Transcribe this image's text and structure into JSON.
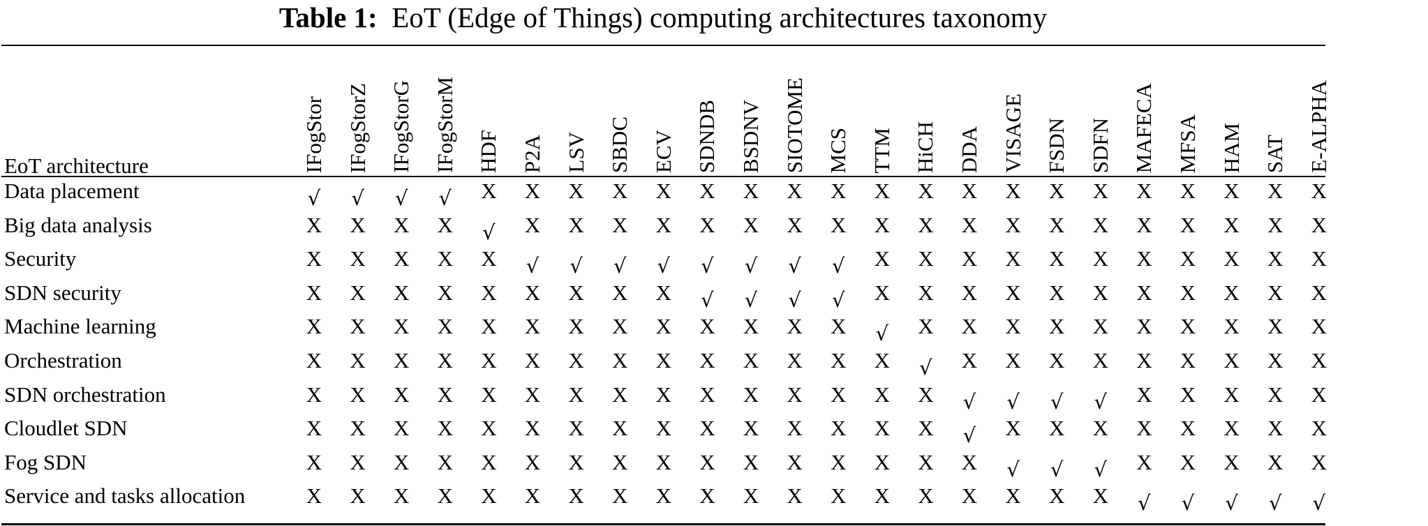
{
  "caption": {
    "label": "Table 1:",
    "text": "EoT (Edge of Things) computing architectures taxonomy"
  },
  "table": {
    "corner_label": "EoT architecture",
    "columns": [
      "IFogStor",
      "IFogStorZ",
      "IFogStorG",
      "IFogStorM",
      "HDF",
      "P2A",
      "LSV",
      "SBDC",
      "ECV",
      "SDNDB",
      "BSDNV",
      "SIOTOME",
      "MCS",
      "TTM",
      "HiCH",
      "DDA",
      "VISAGE",
      "FSDN",
      "SDFN",
      "MAFECA",
      "MFSA",
      "HAM",
      "SAT",
      "E-ALPHA"
    ],
    "symbols": {
      "yes": "√",
      "no": "X"
    },
    "rows": [
      {
        "label": "Data placement",
        "values": [
          "√",
          "√",
          "√",
          "√",
          "X",
          "X",
          "X",
          "X",
          "X",
          "X",
          "X",
          "X",
          "X",
          "X",
          "X",
          "X",
          "X",
          "X",
          "X",
          "X",
          "X",
          "X",
          "X",
          "X"
        ]
      },
      {
        "label": "Big data analysis",
        "values": [
          "X",
          "X",
          "X",
          "X",
          "√",
          "X",
          "X",
          "X",
          "X",
          "X",
          "X",
          "X",
          "X",
          "X",
          "X",
          "X",
          "X",
          "X",
          "X",
          "X",
          "X",
          "X",
          "X",
          "X"
        ]
      },
      {
        "label": "Security",
        "values": [
          "X",
          "X",
          "X",
          "X",
          "X",
          "√",
          "√",
          "√",
          "√",
          "√",
          "√",
          "√",
          "√",
          "X",
          "X",
          "X",
          "X",
          "X",
          "X",
          "X",
          "X",
          "X",
          "X",
          "X"
        ]
      },
      {
        "label": "SDN security",
        "values": [
          "X",
          "X",
          "X",
          "X",
          "X",
          "X",
          "X",
          "X",
          "X",
          "√",
          "√",
          "√",
          "√",
          "X",
          "X",
          "X",
          "X",
          "X",
          "X",
          "X",
          "X",
          "X",
          "X",
          "X"
        ]
      },
      {
        "label": "Machine learning",
        "values": [
          "X",
          "X",
          "X",
          "X",
          "X",
          "X",
          "X",
          "X",
          "X",
          "X",
          "X",
          "X",
          "X",
          "√",
          "X",
          "X",
          "X",
          "X",
          "X",
          "X",
          "X",
          "X",
          "X",
          "X"
        ]
      },
      {
        "label": "Orchestration",
        "values": [
          "X",
          "X",
          "X",
          "X",
          "X",
          "X",
          "X",
          "X",
          "X",
          "X",
          "X",
          "X",
          "X",
          "X",
          "√",
          "X",
          "X",
          "X",
          "X",
          "X",
          "X",
          "X",
          "X",
          "X"
        ]
      },
      {
        "label": "SDN orchestration",
        "values": [
          "X",
          "X",
          "X",
          "X",
          "X",
          "X",
          "X",
          "X",
          "X",
          "X",
          "X",
          "X",
          "X",
          "X",
          "X",
          "√",
          "√",
          "√",
          "√",
          "X",
          "X",
          "X",
          "X",
          "X"
        ]
      },
      {
        "label": "Cloudlet SDN",
        "values": [
          "X",
          "X",
          "X",
          "X",
          "X",
          "X",
          "X",
          "X",
          "X",
          "X",
          "X",
          "X",
          "X",
          "X",
          "X",
          "√",
          "X",
          "X",
          "X",
          "X",
          "X",
          "X",
          "X",
          "X"
        ]
      },
      {
        "label": "Fog SDN",
        "values": [
          "X",
          "X",
          "X",
          "X",
          "X",
          "X",
          "X",
          "X",
          "X",
          "X",
          "X",
          "X",
          "X",
          "X",
          "X",
          "X",
          "√",
          "√",
          "√",
          "X",
          "X",
          "X",
          "X",
          "X"
        ]
      },
      {
        "label": "Service and tasks allocation",
        "values": [
          "X",
          "X",
          "X",
          "X",
          "X",
          "X",
          "X",
          "X",
          "X",
          "X",
          "X",
          "X",
          "X",
          "X",
          "X",
          "X",
          "X",
          "X",
          "X",
          "√",
          "√",
          "√",
          "√",
          "√"
        ]
      }
    ]
  }
}
